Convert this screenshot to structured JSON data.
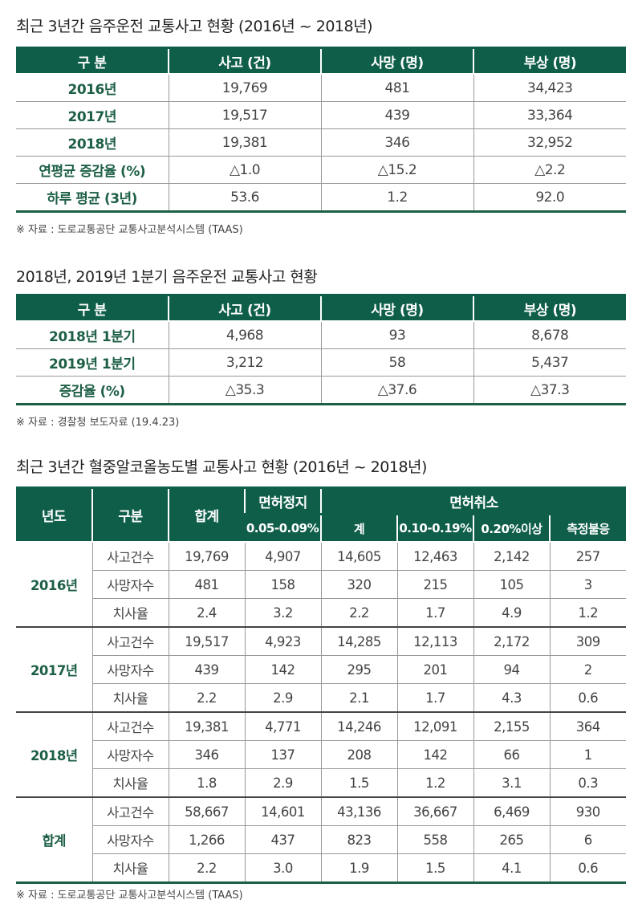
{
  "t1": {
    "title": "최근 3년간 음주운전 교통사고 현황 (2016년 ~ 2018년)",
    "headers": [
      "구 분",
      "사고 (건)",
      "사망 (명)",
      "부상 (명)"
    ],
    "rows": [
      [
        "2016년",
        "19,769",
        "481",
        "34,423"
      ],
      [
        "2017년",
        "19,517",
        "439",
        "33,364"
      ],
      [
        "2018년",
        "19,381",
        "346",
        "32,952"
      ],
      [
        "연평균 증감율 (%)",
        "△1.0",
        "△15.2",
        "△2.2"
      ],
      [
        "하루 평균 (3년)",
        "53.6",
        "1.2",
        "92.0"
      ]
    ],
    "source": "※ 자료 : 도로교통공단 교통사고분석시스템 (TAAS)"
  },
  "t2": {
    "title": "2018년, 2019년 1분기 음주운전 교통사고 현황",
    "headers": [
      "구 분",
      "사고 (건)",
      "사망 (명)",
      "부상 (명)"
    ],
    "rows": [
      [
        "2018년 1분기",
        "4,968",
        "93",
        "8,678"
      ],
      [
        "2019년 1분기",
        "3,212",
        "58",
        "5,437"
      ],
      [
        "증감율 (%)",
        "△35.3",
        "△37.6",
        "△37.3"
      ]
    ],
    "source": "※ 자료 : 경찰청 보도자료 (19.4.23)"
  },
  "t3": {
    "title": "최근 3년간 혈중알코올농도별 교통사고 현황 (2016년 ~ 2018년)",
    "headers": {
      "year": "년도",
      "cat": "구분",
      "total": "합계",
      "suspend": "면허정지",
      "revoke": "면허취소",
      "sub": [
        "0.05-0.09%",
        "계",
        "0.10-0.19%",
        "0.20%이상",
        "측정불응"
      ]
    },
    "groups": [
      {
        "year": "2016년",
        "rows": [
          [
            "사고건수",
            "19,769",
            "4,907",
            "14,605",
            "12,463",
            "2,142",
            "257"
          ],
          [
            "사망자수",
            "481",
            "158",
            "320",
            "215",
            "105",
            "3"
          ],
          [
            "치사율",
            "2.4",
            "3.2",
            "2.2",
            "1.7",
            "4.9",
            "1.2"
          ]
        ]
      },
      {
        "year": "2017년",
        "rows": [
          [
            "사고건수",
            "19,517",
            "4,923",
            "14,285",
            "12,113",
            "2,172",
            "309"
          ],
          [
            "사망자수",
            "439",
            "142",
            "295",
            "201",
            "94",
            "2"
          ],
          [
            "치사율",
            "2.2",
            "2.9",
            "2.1",
            "1.7",
            "4.3",
            "0.6"
          ]
        ]
      },
      {
        "year": "2018년",
        "rows": [
          [
            "사고건수",
            "19,381",
            "4,771",
            "14,246",
            "12,091",
            "2,155",
            "364"
          ],
          [
            "사망자수",
            "346",
            "137",
            "208",
            "142",
            "66",
            "1"
          ],
          [
            "치사율",
            "1.8",
            "2.9",
            "1.5",
            "1.2",
            "3.1",
            "0.3"
          ]
        ]
      },
      {
        "year": "합계",
        "rows": [
          [
            "사고건수",
            "58,667",
            "14,601",
            "43,136",
            "36,667",
            "6,469",
            "930"
          ],
          [
            "사망자수",
            "1,266",
            "437",
            "823",
            "558",
            "265",
            "6"
          ],
          [
            "치사율",
            "2.2",
            "3.0",
            "1.9",
            "1.5",
            "4.1",
            "0.6"
          ]
        ]
      }
    ],
    "source": "※ 자료 : 도로교통공단 교통사고분석시스템 (TAAS)"
  }
}
